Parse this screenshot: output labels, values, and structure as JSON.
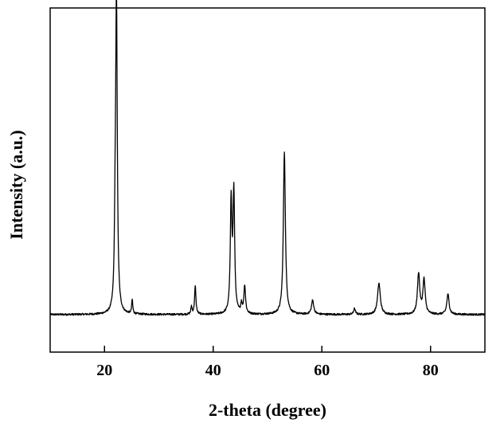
{
  "chart_data": {
    "type": "line",
    "title": "",
    "xlabel": "2-theta (degree)",
    "ylabel": "Intensity (a.u.)",
    "xlim": [
      10,
      90
    ],
    "ylim": [
      0,
      1.1
    ],
    "xticks": [
      20,
      40,
      60,
      80
    ],
    "xtick_labels": [
      "20",
      "40",
      "60",
      "80"
    ],
    "y_tick_labels_shown": false,
    "grid": false,
    "line_color": "#000000",
    "baseline": 0.12,
    "noise_amplitude": 0.003,
    "peaks": [
      {
        "x": 22.2,
        "height": 1.0,
        "width": 0.18
      },
      {
        "x": 21.95,
        "height": 0.18,
        "width": 0.15
      },
      {
        "x": 25.1,
        "height": 0.045,
        "width": 0.12
      },
      {
        "x": 36.0,
        "height": 0.025,
        "width": 0.12
      },
      {
        "x": 36.7,
        "height": 0.09,
        "width": 0.15
      },
      {
        "x": 43.3,
        "height": 0.35,
        "width": 0.18
      },
      {
        "x": 43.8,
        "height": 0.38,
        "width": 0.18
      },
      {
        "x": 45.2,
        "height": 0.03,
        "width": 0.15
      },
      {
        "x": 45.8,
        "height": 0.09,
        "width": 0.18
      },
      {
        "x": 53.1,
        "height": 0.52,
        "width": 0.22
      },
      {
        "x": 58.3,
        "height": 0.045,
        "width": 0.25
      },
      {
        "x": 66.0,
        "height": 0.018,
        "width": 0.2
      },
      {
        "x": 70.5,
        "height": 0.1,
        "width": 0.3
      },
      {
        "x": 77.8,
        "height": 0.13,
        "width": 0.25
      },
      {
        "x": 78.8,
        "height": 0.11,
        "width": 0.25
      },
      {
        "x": 83.2,
        "height": 0.065,
        "width": 0.25
      }
    ]
  }
}
